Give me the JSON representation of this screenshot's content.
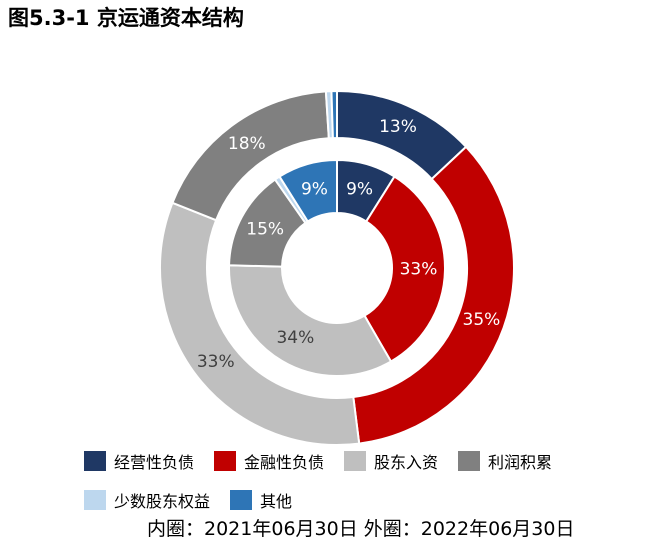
{
  "title": "图5.3-1 京运通资本结构",
  "footnote": "内圈：2021年06月30日 外圈：2022年06月30日",
  "chart_data": {
    "type": "pie",
    "categories": [
      "经营性负债",
      "金融性负债",
      "股东入资",
      "利润积累",
      "少数股东权益",
      "其他"
    ],
    "colors": [
      "#1f3864",
      "#c00000",
      "#bfbfbf",
      "#808080",
      "#bdd7ee",
      "#2e75b6"
    ],
    "label_colors": [
      "#ffffff",
      "#ffffff",
      "#404040",
      "#ffffff",
      "#404040",
      "#ffffff"
    ],
    "series": [
      {
        "name": "外圈：2022年06月30日",
        "values": [
          13,
          35,
          33,
          18,
          0.5,
          0.5
        ],
        "labels": [
          "13%",
          "35%",
          "33%",
          "18%",
          "",
          ""
        ]
      },
      {
        "name": "内圈：2021年06月30日",
        "values": [
          9,
          33,
          34,
          15,
          0.8,
          9
        ],
        "labels": [
          "9%",
          "33%",
          "34%",
          "15%",
          "",
          "9%"
        ]
      }
    ]
  }
}
